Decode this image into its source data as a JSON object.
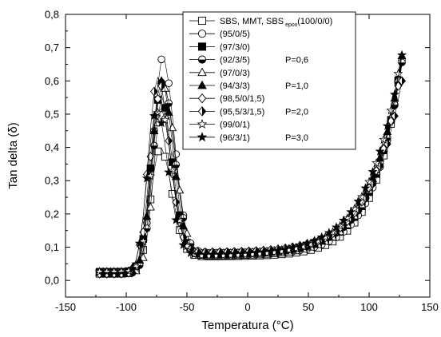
{
  "chart_data": {
    "type": "scatter",
    "xlabel": "Temperatura (°C)",
    "ylabel": "Tan delta (δ)",
    "xlim": [
      -150,
      150
    ],
    "ylim": [
      -0.05,
      0.8
    ],
    "xticks": [
      -150,
      -100,
      -50,
      0,
      50,
      100,
      150
    ],
    "yticks": [
      0.0,
      0.1,
      0.2,
      0.3,
      0.4,
      0.5,
      0.6,
      0.7,
      0.8
    ],
    "xtick_labels": [
      "-150",
      "-100",
      "-50",
      "0",
      "50",
      "100",
      "150"
    ],
    "ytick_labels": [
      "0,0",
      "0,1",
      "0,2",
      "0,3",
      "0,4",
      "0,5",
      "0,6",
      "0,7",
      "0,8"
    ],
    "grid": false,
    "legend_position": "top-center",
    "series": [
      {
        "name": "SBS, MMT, SBS",
        "name_sub": "epox",
        "name_suffix": "(100/0/0)",
        "marker": "square-open",
        "peak": 0.4,
        "peak_t": -72,
        "tail": 0.7
      },
      {
        "name": "(95/0/5)",
        "marker": "circle-open",
        "peak": 0.67,
        "peak_t": -70,
        "tail": 0.69
      },
      {
        "name": "(97/3/0)",
        "marker": "square-filled",
        "peak": 0.56,
        "peak_t": -72,
        "tail": 0.7
      },
      {
        "name": "(92/3/5)",
        "marker": "circle-half",
        "peak": 0.6,
        "peak_t": -70,
        "tail": 0.68
      },
      {
        "name": "(97/0/3)",
        "marker": "triangle-open",
        "peak": 0.58,
        "peak_t": -69,
        "tail": 0.7
      },
      {
        "name": "(94/3/3)",
        "marker": "triangle-filled",
        "peak": 0.6,
        "peak_t": -71,
        "tail": 0.7
      },
      {
        "name": "(98,5/0/1,5)",
        "marker": "diamond-open",
        "peak": 0.55,
        "peak_t": -73,
        "tail": 0.67
      },
      {
        "name": "(95,5/3/1,5)",
        "marker": "diamond-half",
        "peak": 0.61,
        "peak_t": -74,
        "tail": 0.62
      },
      {
        "name": "(99/0/1)",
        "marker": "star-open",
        "peak": 0.52,
        "peak_t": -72,
        "tail": 0.71
      },
      {
        "name": "(96/3/1)",
        "marker": "star-filled",
        "peak": 0.51,
        "peak_t": -75,
        "tail": 0.7
      }
    ],
    "annotations": [
      {
        "text": "P=0,6",
        "series_index": 3
      },
      {
        "text": "P=1,0",
        "series_index": 5
      },
      {
        "text": "P=2,0",
        "series_index": 7
      },
      {
        "text": "P=3,0",
        "series_index": 9
      }
    ]
  }
}
